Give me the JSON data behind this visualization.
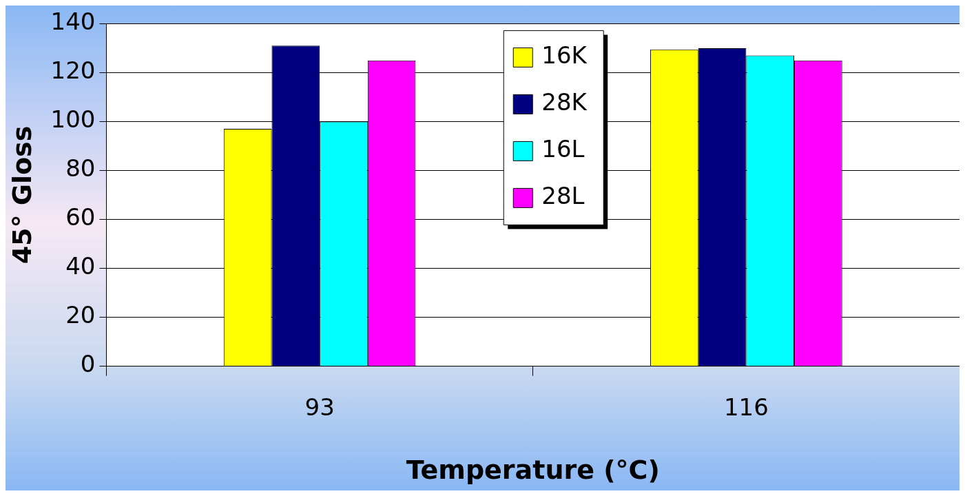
{
  "chart_data": {
    "type": "bar",
    "xlabel": "Temperature (°C)",
    "ylabel": "45° Gloss",
    "categories": [
      "93",
      "116"
    ],
    "series": [
      {
        "name": "16K",
        "color": "#ffff00",
        "values": [
          97,
          129.5
        ]
      },
      {
        "name": "28K",
        "color": "#000080",
        "values": [
          131,
          130
        ]
      },
      {
        "name": "16L",
        "color": "#00ffff",
        "values": [
          100,
          127
        ]
      },
      {
        "name": "28L",
        "color": "#ff00ff",
        "values": [
          125,
          125
        ]
      }
    ],
    "ylim": [
      0,
      140
    ],
    "yticks": [
      0,
      20,
      40,
      60,
      80,
      100,
      120,
      140
    ],
    "grid": "y",
    "legend": "top"
  }
}
